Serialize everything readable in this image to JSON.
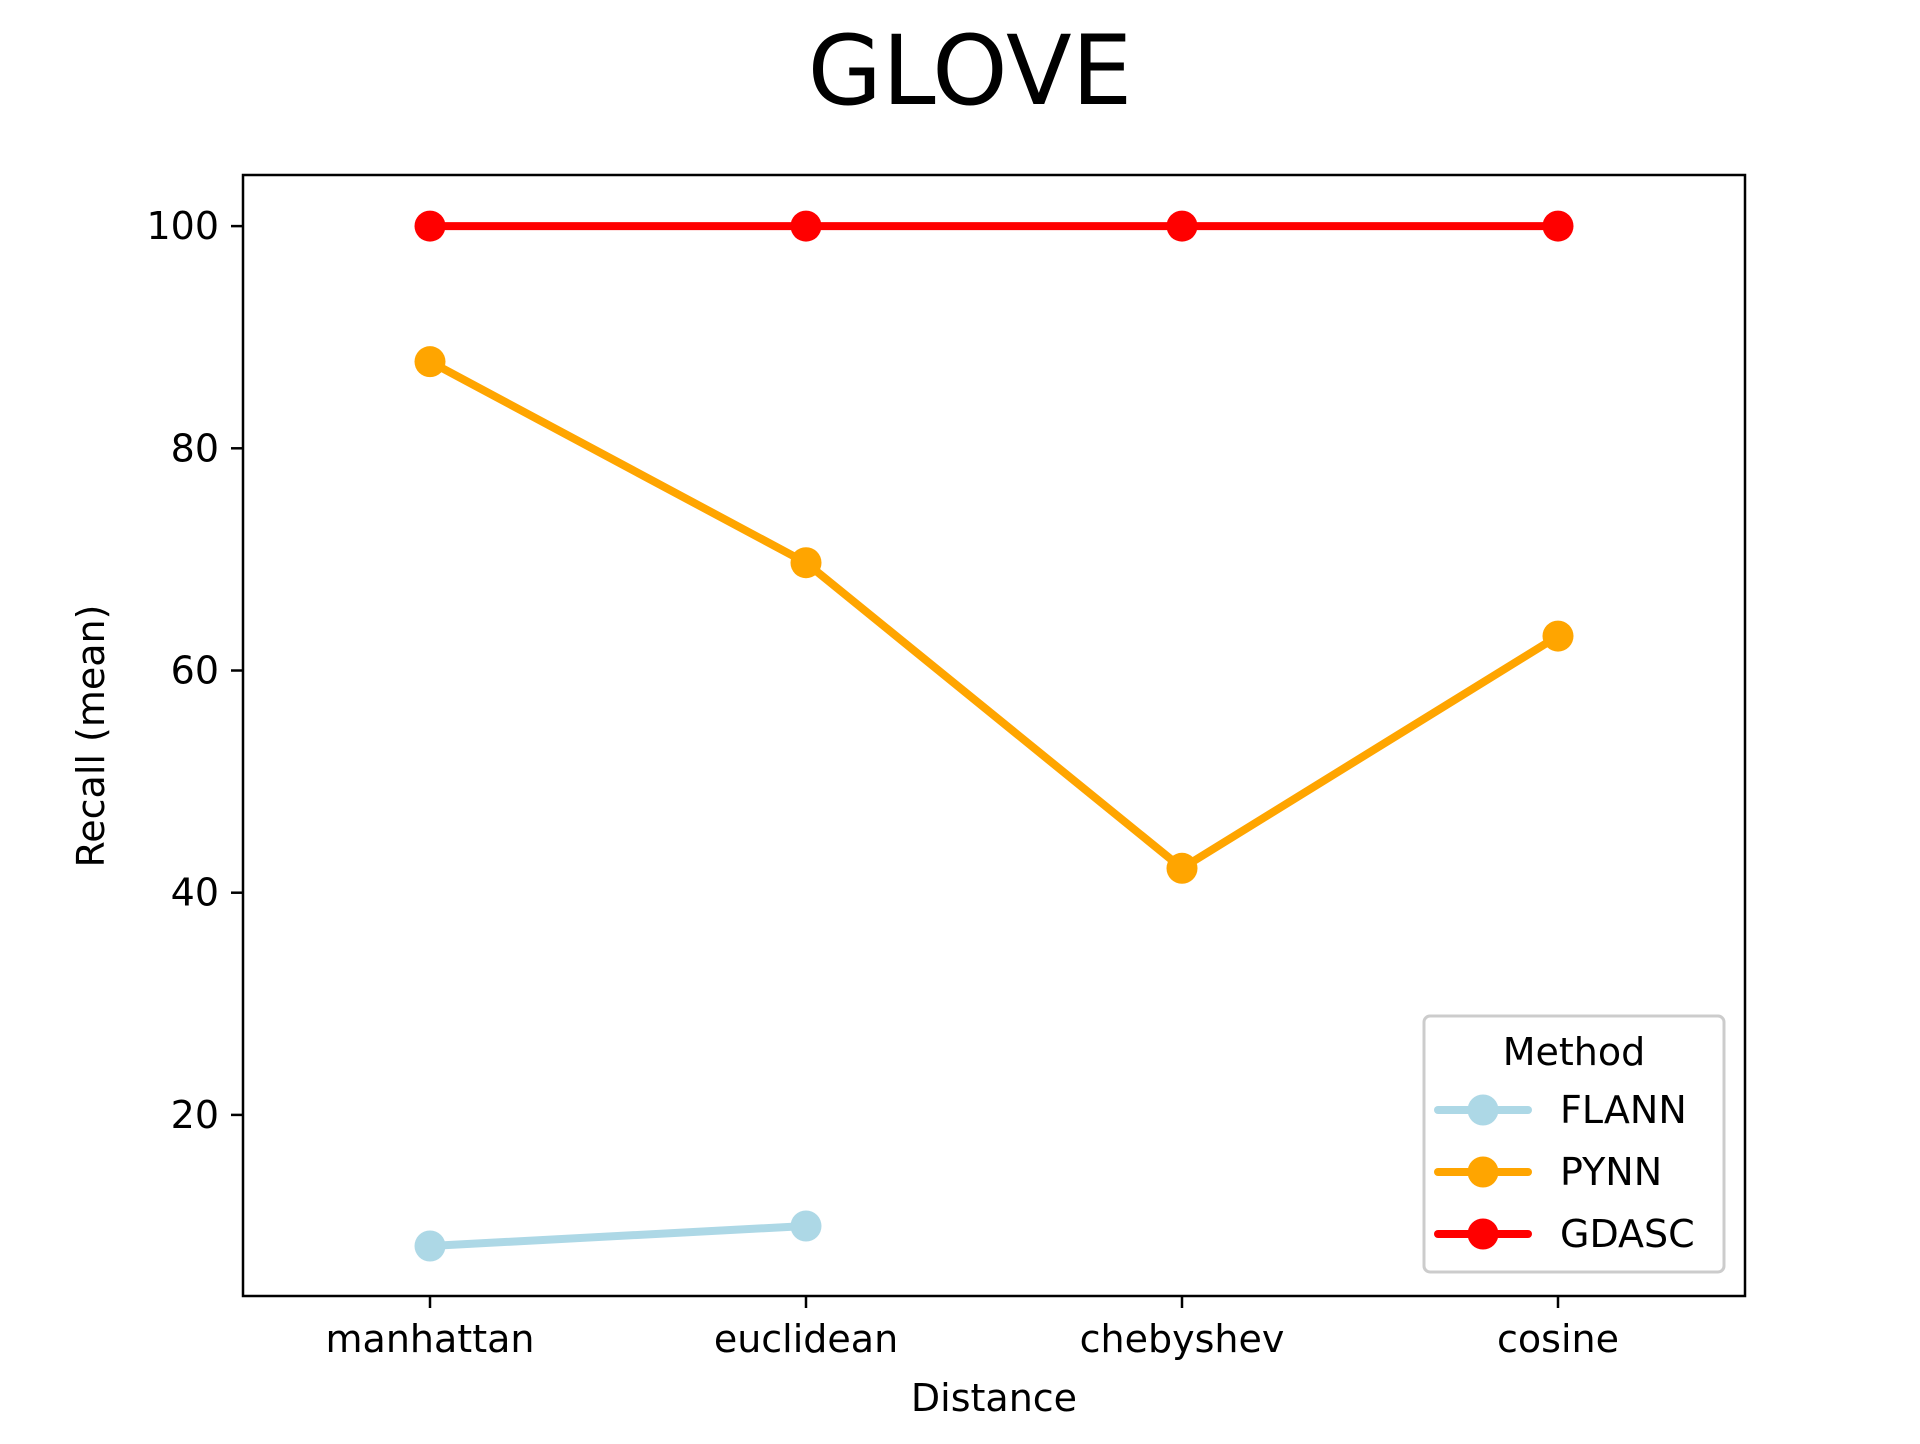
{
  "chart_data": {
    "type": "line",
    "title": "GLOVE",
    "xlabel": "Distance",
    "ylabel": "Recall (mean)",
    "categories": [
      "manhattan",
      "euclidean",
      "chebyshev",
      "cosine"
    ],
    "yticks": [
      20,
      40,
      60,
      80,
      100
    ],
    "ylim": [
      3.7,
      104.6
    ],
    "grid": false,
    "legend": {
      "title": "Method",
      "placement": "lower-right"
    },
    "series": [
      {
        "name": "FLANN",
        "color": "#ADD8E6",
        "values": [
          8.2,
          10.0,
          null,
          null
        ]
      },
      {
        "name": "PYNN",
        "color": "#FFA500",
        "values": [
          87.8,
          69.7,
          42.2,
          63.1
        ]
      },
      {
        "name": "GDASC",
        "color": "#FF0000",
        "values": [
          100,
          100,
          100,
          100
        ]
      }
    ]
  }
}
